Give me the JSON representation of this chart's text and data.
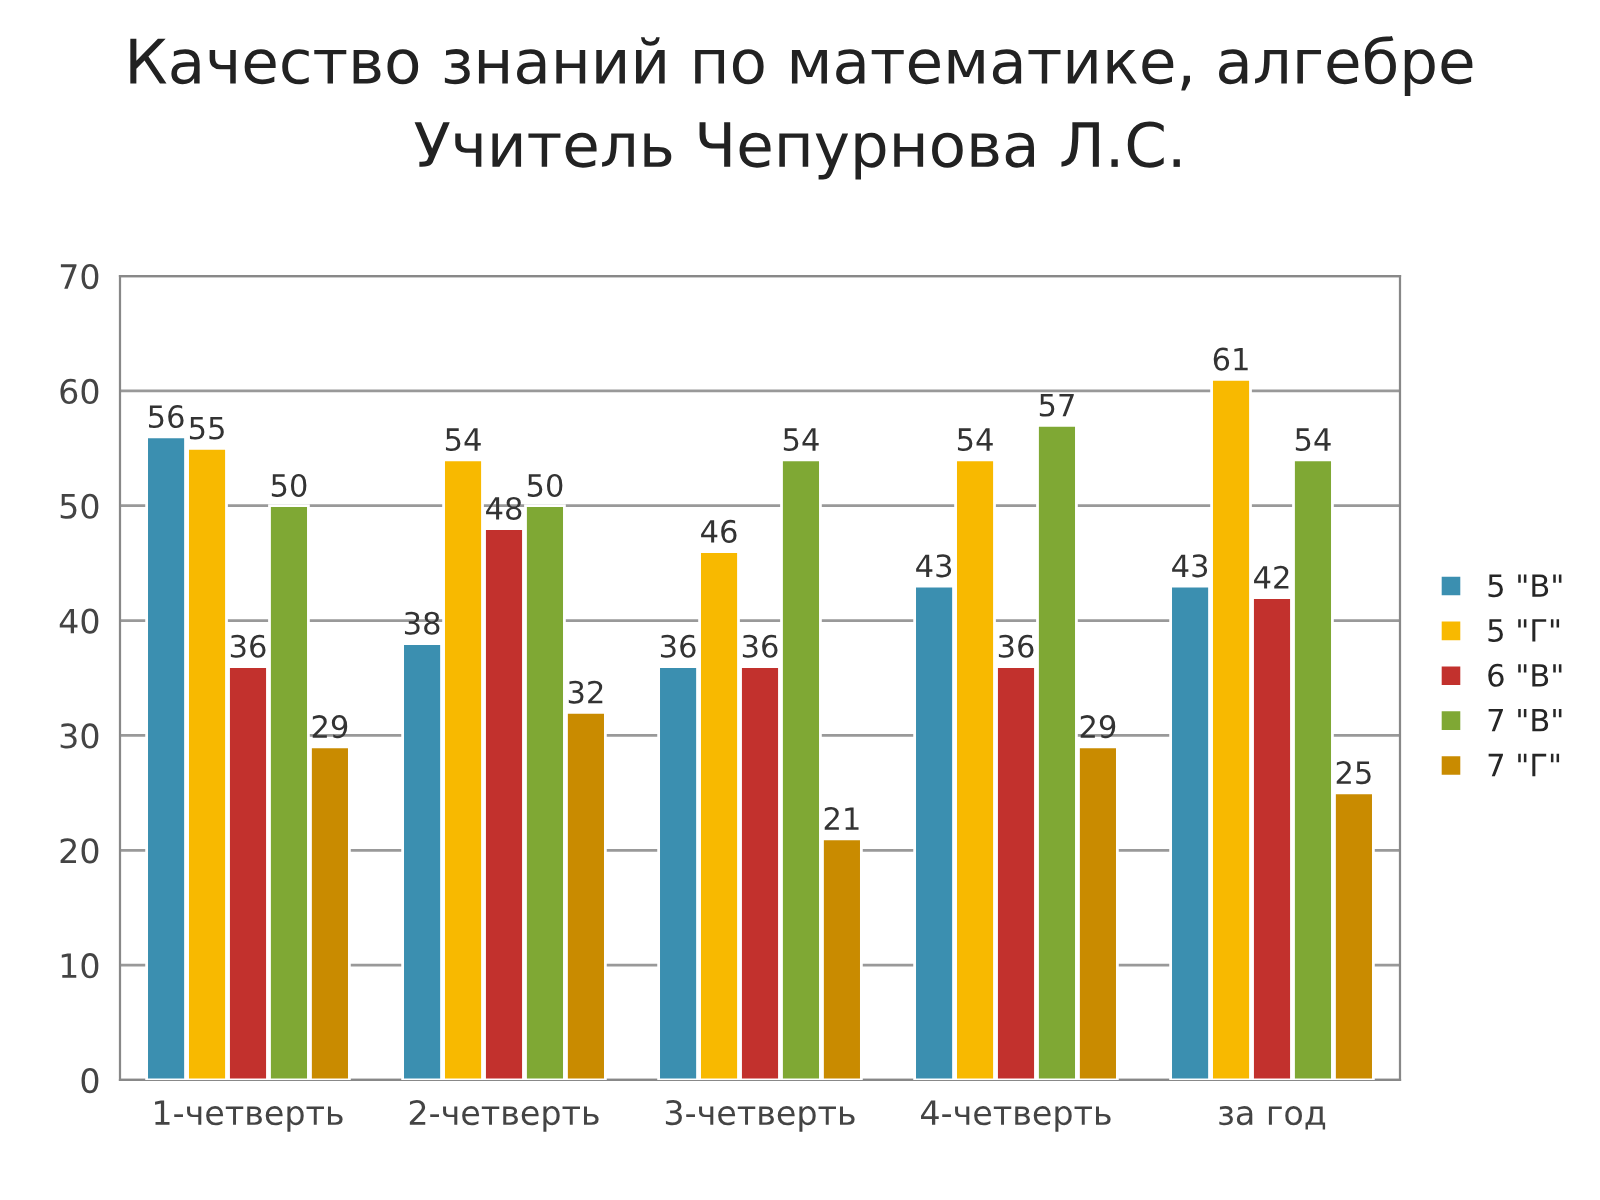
{
  "chart_data": {
    "type": "bar",
    "title": "Качество знаний по математике, алгебре",
    "subtitle": "Учитель Чепурнова Л.С.",
    "categories": [
      "1-четверть",
      "2-четверть",
      "3-четверть",
      "4-четверть",
      "за год"
    ],
    "series": [
      {
        "name": "5 \"В\"",
        "color": "#3b8fb0",
        "values": [
          56,
          38,
          36,
          43,
          43
        ]
      },
      {
        "name": "5 \"Г\"",
        "color": "#f8b900",
        "values": [
          55,
          54,
          46,
          54,
          61
        ]
      },
      {
        "name": "6 \"В\"",
        "color": "#c2312d",
        "values": [
          36,
          48,
          36,
          36,
          42
        ]
      },
      {
        "name": "7 \"В\"",
        "color": "#7fa834",
        "values": [
          50,
          50,
          54,
          57,
          54
        ]
      },
      {
        "name": "7 \"Г\"",
        "color": "#c98b00",
        "values": [
          29,
          32,
          21,
          29,
          25
        ]
      }
    ],
    "ylim": [
      0,
      70
    ],
    "yticks": [
      0,
      10,
      20,
      30,
      40,
      50,
      60,
      70
    ],
    "grid": "y",
    "legend": "right",
    "data_labels": true
  }
}
